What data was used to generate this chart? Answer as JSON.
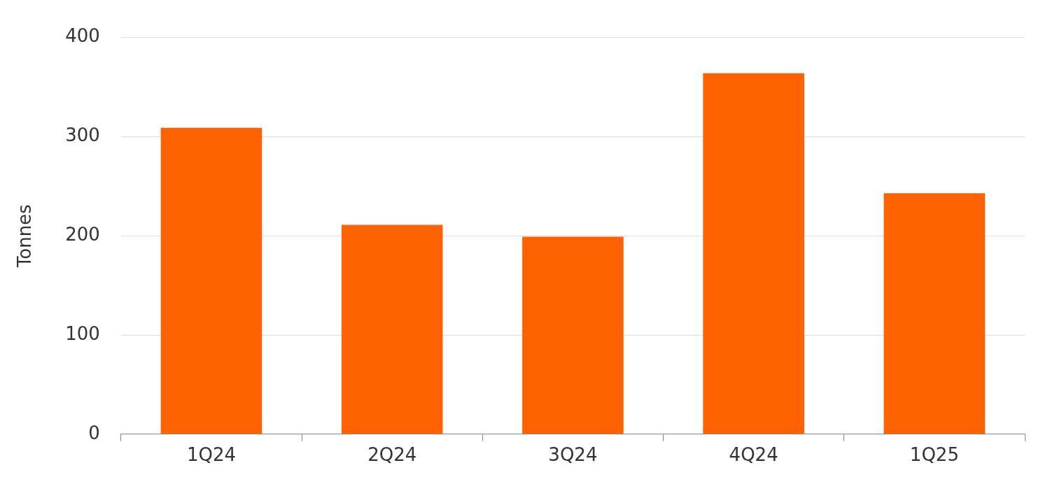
{
  "chart_data": {
    "type": "bar",
    "ylabel": "Tonnes",
    "categories": [
      "1Q24",
      "2Q24",
      "3Q24",
      "4Q24",
      "1Q25"
    ],
    "values": [
      309,
      211,
      199,
      364,
      243
    ],
    "color": "#ff6200",
    "ylim": [
      0,
      400
    ],
    "yticks": [
      0,
      100,
      200,
      300,
      400
    ],
    "grid": "y",
    "legend": false
  }
}
